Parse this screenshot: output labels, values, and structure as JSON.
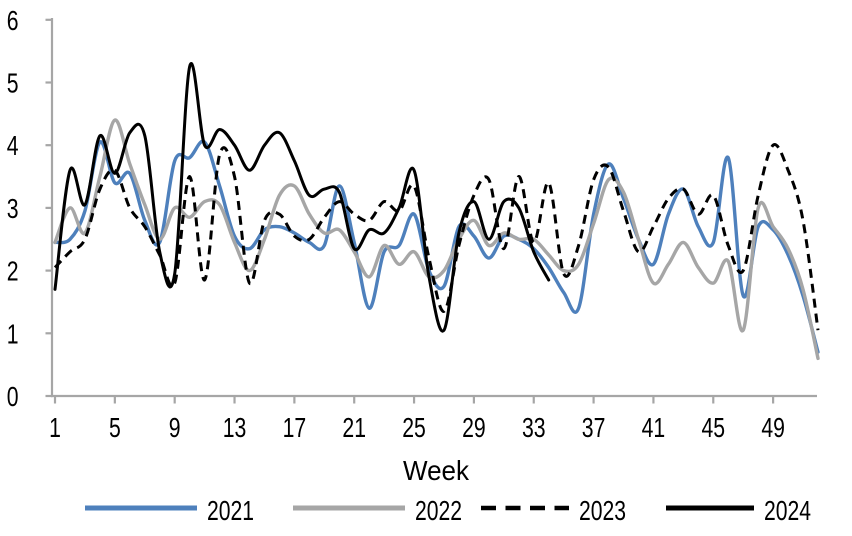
{
  "chart_data": {
    "type": "line",
    "title": "",
    "xlabel": "Week",
    "ylabel": "",
    "grid": false,
    "legend_position": "bottom",
    "x_axis": {
      "min": 1,
      "max": 52,
      "ticks": [
        1,
        5,
        9,
        13,
        17,
        21,
        25,
        29,
        33,
        37,
        41,
        45,
        49
      ]
    },
    "y_axis": {
      "min": 0,
      "max": 6,
      "ticks": [
        0,
        1,
        2,
        3,
        4,
        5,
        6
      ]
    },
    "axis_color": "#A6A6A6",
    "text_color": "#000000",
    "series": [
      {
        "name": "2021",
        "color": "#4E80BC",
        "line_style": "solid",
        "width": 3.4,
        "start_week": 1,
        "values": [
          2.45,
          2.5,
          2.95,
          4.05,
          3.4,
          3.55,
          2.8,
          2.45,
          3.75,
          3.8,
          4.05,
          3.35,
          2.55,
          2.35,
          2.65,
          2.7,
          2.6,
          2.45,
          2.4,
          3.35,
          2.45,
          1.4,
          2.3,
          2.4,
          2.9,
          2.0,
          1.75,
          2.7,
          2.55,
          2.2,
          2.55,
          2.5,
          2.35,
          2.05,
          1.65,
          1.4,
          2.9,
          3.7,
          3.15,
          2.5,
          2.1,
          2.9,
          3.3,
          2.7,
          2.45,
          3.8,
          1.6,
          2.7,
          2.65,
          2.25,
          1.6,
          0.7
        ]
      },
      {
        "name": "2022",
        "color": "#A6A6A6",
        "line_style": "solid",
        "width": 3.4,
        "start_week": 1,
        "values": [
          2.45,
          3.0,
          2.6,
          3.5,
          4.4,
          3.7,
          3.05,
          2.5,
          3.0,
          2.85,
          3.1,
          3.05,
          2.45,
          2.0,
          2.5,
          3.2,
          3.35,
          2.9,
          2.6,
          2.65,
          2.3,
          1.9,
          2.4,
          2.1,
          2.3,
          1.9,
          2.0,
          2.5,
          2.8,
          2.4,
          2.6,
          2.5,
          2.5,
          2.25,
          2.0,
          2.1,
          2.75,
          3.45,
          3.25,
          2.5,
          1.8,
          2.1,
          2.45,
          2.05,
          1.8,
          2.15,
          1.05,
          3.0,
          2.7,
          2.35,
          1.7,
          0.6
        ]
      },
      {
        "name": "2023",
        "color": "#000000",
        "line_style": "dashed",
        "dash": "9 6",
        "width": 3.0,
        "start_week": 1,
        "values": [
          2.05,
          2.3,
          2.5,
          3.3,
          3.6,
          3.0,
          2.7,
          2.25,
          1.8,
          3.5,
          1.85,
          3.85,
          3.5,
          1.8,
          2.8,
          2.9,
          2.55,
          2.5,
          2.85,
          3.1,
          2.9,
          2.8,
          3.1,
          2.95,
          3.35,
          2.2,
          1.35,
          2.4,
          3.2,
          3.45,
          2.35,
          3.5,
          2.45,
          3.4,
          1.95,
          2.4,
          3.45,
          3.65,
          2.95,
          2.3,
          2.7,
          3.15,
          3.3,
          2.9,
          3.2,
          2.4,
          2.0,
          3.2,
          4.0,
          3.6,
          2.8,
          1.05
        ]
      },
      {
        "name": "2024",
        "color": "#000000",
        "line_style": "solid",
        "width": 3.0,
        "start_week": 1,
        "values": [
          1.7,
          3.6,
          3.05,
          4.15,
          3.55,
          4.2,
          4.15,
          2.3,
          1.95,
          5.25,
          4.0,
          4.25,
          4.0,
          3.6,
          4.0,
          4.2,
          3.75,
          3.2,
          3.3,
          3.25,
          2.35,
          2.65,
          2.6,
          3.0,
          3.6,
          1.9,
          1.05,
          2.6,
          3.1,
          2.5,
          3.1,
          3.0,
          2.3,
          1.85
        ]
      }
    ]
  },
  "legend": {
    "items": [
      "2021",
      "2022",
      "2023",
      "2024"
    ]
  }
}
